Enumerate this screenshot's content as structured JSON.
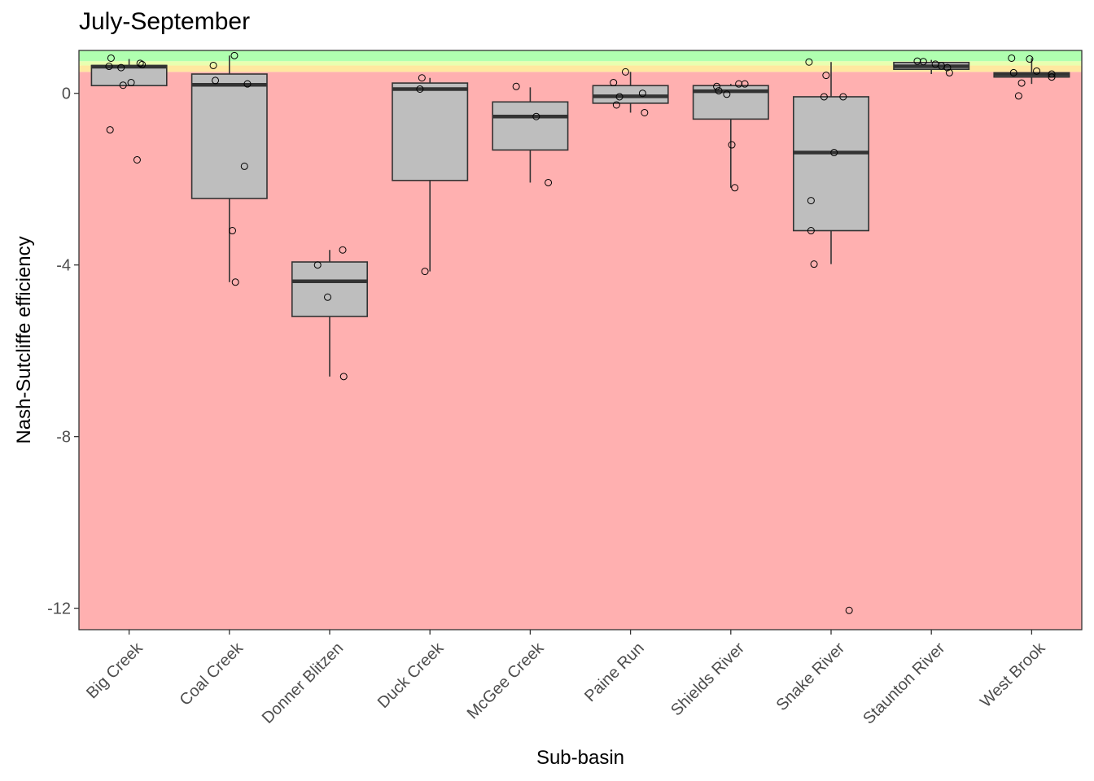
{
  "chart_data": {
    "type": "box",
    "title": "July-September",
    "xlabel": "Sub-basin",
    "ylabel": "Nash-Sutcliffe efficiency",
    "ylim": [
      -12.5,
      1.0
    ],
    "yticks": [
      0,
      -4,
      -8,
      -12
    ],
    "ytick_labels": [
      "0",
      "-4",
      "-8",
      "-12"
    ],
    "grid": false,
    "background_bands": [
      {
        "from": -12.5,
        "to": 0.5,
        "color": "#ffb0b0"
      },
      {
        "from": 0.5,
        "to": 0.65,
        "color": "#ffe8a0"
      },
      {
        "from": 0.65,
        "to": 0.75,
        "color": "#e8ffb0"
      },
      {
        "from": 0.75,
        "to": 1.0,
        "color": "#b0ffb0"
      }
    ],
    "box_fill": "#bebebe",
    "categories": [
      "Big Creek",
      "Coal Creek",
      "Donner Blitzen",
      "Duck Creek",
      "McGee Creek",
      "Paine Run",
      "Shields River",
      "Snake River",
      "Staunton River",
      "West Brook"
    ],
    "boxes": [
      {
        "q1": 0.18,
        "median": 0.62,
        "q3": 0.65,
        "whisker_low": 0.18,
        "whisker_high": 0.8
      },
      {
        "q1": -2.45,
        "median": 0.2,
        "q3": 0.45,
        "whisker_low": -4.4,
        "whisker_high": 0.88
      },
      {
        "q1": -5.2,
        "median": -4.38,
        "q3": -3.93,
        "whisker_low": -6.6,
        "whisker_high": -3.65
      },
      {
        "q1": -2.03,
        "median": 0.1,
        "q3": 0.24,
        "whisker_low": -4.15,
        "whisker_high": 0.36
      },
      {
        "q1": -1.32,
        "median": -0.54,
        "q3": -0.2,
        "whisker_low": -2.08,
        "whisker_high": 0.14
      },
      {
        "q1": -0.23,
        "median": -0.07,
        "q3": 0.18,
        "whisker_low": -0.45,
        "whisker_high": 0.5
      },
      {
        "q1": -0.6,
        "median": 0.05,
        "q3": 0.18,
        "whisker_low": -2.2,
        "whisker_high": 0.22
      },
      {
        "q1": -3.2,
        "median": -1.38,
        "q3": -0.08,
        "whisker_low": -3.98,
        "whisker_high": 0.73
      },
      {
        "q1": 0.56,
        "median": 0.63,
        "q3": 0.72,
        "whisker_low": 0.45,
        "whisker_high": 0.78
      },
      {
        "q1": 0.38,
        "median": 0.44,
        "q3": 0.48,
        "whisker_low": 0.22,
        "whisker_high": 0.82
      }
    ],
    "points": [
      {
        "category": 0,
        "offset": -0.18,
        "y": 0.82
      },
      {
        "category": 0,
        "offset": -0.2,
        "y": 0.63
      },
      {
        "category": 0,
        "offset": -0.08,
        "y": 0.6
      },
      {
        "category": 0,
        "offset": 0.11,
        "y": 0.7
      },
      {
        "category": 0,
        "offset": 0.13,
        "y": 0.67
      },
      {
        "category": 0,
        "offset": -0.06,
        "y": 0.19
      },
      {
        "category": 0,
        "offset": 0.02,
        "y": 0.25
      },
      {
        "category": 0,
        "offset": -0.19,
        "y": -0.85
      },
      {
        "category": 0,
        "offset": 0.08,
        "y": -1.55
      },
      {
        "category": 1,
        "offset": -0.16,
        "y": 0.65
      },
      {
        "category": 1,
        "offset": 0.05,
        "y": 0.88
      },
      {
        "category": 1,
        "offset": -0.14,
        "y": 0.3
      },
      {
        "category": 1,
        "offset": 0.18,
        "y": 0.22
      },
      {
        "category": 1,
        "offset": 0.15,
        "y": -1.7
      },
      {
        "category": 1,
        "offset": 0.03,
        "y": -3.2
      },
      {
        "category": 1,
        "offset": 0.06,
        "y": -4.4
      },
      {
        "category": 2,
        "offset": -0.12,
        "y": -4.0
      },
      {
        "category": 2,
        "offset": 0.13,
        "y": -3.65
      },
      {
        "category": 2,
        "offset": -0.02,
        "y": -4.75
      },
      {
        "category": 2,
        "offset": 0.14,
        "y": -6.6
      },
      {
        "category": 3,
        "offset": -0.08,
        "y": 0.36
      },
      {
        "category": 3,
        "offset": -0.1,
        "y": 0.1
      },
      {
        "category": 3,
        "offset": -0.05,
        "y": -4.15
      },
      {
        "category": 4,
        "offset": -0.14,
        "y": 0.16
      },
      {
        "category": 4,
        "offset": 0.06,
        "y": -0.54
      },
      {
        "category": 4,
        "offset": 0.18,
        "y": -2.08
      },
      {
        "category": 5,
        "offset": -0.17,
        "y": 0.25
      },
      {
        "category": 5,
        "offset": -0.05,
        "y": 0.5
      },
      {
        "category": 5,
        "offset": -0.11,
        "y": -0.08
      },
      {
        "category": 5,
        "offset": -0.14,
        "y": -0.27
      },
      {
        "category": 5,
        "offset": 0.12,
        "y": 0.0
      },
      {
        "category": 5,
        "offset": 0.14,
        "y": -0.45
      },
      {
        "category": 6,
        "offset": -0.14,
        "y": 0.16
      },
      {
        "category": 6,
        "offset": -0.12,
        "y": 0.06
      },
      {
        "category": 6,
        "offset": -0.04,
        "y": -0.02
      },
      {
        "category": 6,
        "offset": 0.08,
        "y": 0.22
      },
      {
        "category": 6,
        "offset": 0.14,
        "y": 0.22
      },
      {
        "category": 6,
        "offset": 0.01,
        "y": -1.2
      },
      {
        "category": 6,
        "offset": 0.04,
        "y": -2.2
      },
      {
        "category": 7,
        "offset": -0.22,
        "y": 0.73
      },
      {
        "category": 7,
        "offset": -0.05,
        "y": 0.42
      },
      {
        "category": 7,
        "offset": -0.07,
        "y": -0.08
      },
      {
        "category": 7,
        "offset": 0.12,
        "y": -0.08
      },
      {
        "category": 7,
        "offset": 0.03,
        "y": -1.38
      },
      {
        "category": 7,
        "offset": -0.2,
        "y": -2.5
      },
      {
        "category": 7,
        "offset": -0.2,
        "y": -3.2
      },
      {
        "category": 7,
        "offset": -0.17,
        "y": -3.98
      },
      {
        "category": 7,
        "offset": 0.18,
        "y": -12.05
      },
      {
        "category": 8,
        "offset": -0.14,
        "y": 0.75
      },
      {
        "category": 8,
        "offset": -0.08,
        "y": 0.74
      },
      {
        "category": 8,
        "offset": 0.04,
        "y": 0.68
      },
      {
        "category": 8,
        "offset": 0.16,
        "y": 0.6
      },
      {
        "category": 8,
        "offset": 0.18,
        "y": 0.48
      },
      {
        "category": 8,
        "offset": 0.1,
        "y": 0.64
      },
      {
        "category": 9,
        "offset": -0.2,
        "y": 0.82
      },
      {
        "category": 9,
        "offset": -0.02,
        "y": 0.8
      },
      {
        "category": 9,
        "offset": -0.18,
        "y": 0.48
      },
      {
        "category": 9,
        "offset": 0.05,
        "y": 0.52
      },
      {
        "category": 9,
        "offset": 0.2,
        "y": 0.45
      },
      {
        "category": 9,
        "offset": 0.2,
        "y": 0.38
      },
      {
        "category": 9,
        "offset": -0.1,
        "y": 0.24
      },
      {
        "category": 9,
        "offset": -0.13,
        "y": -0.06
      }
    ]
  }
}
